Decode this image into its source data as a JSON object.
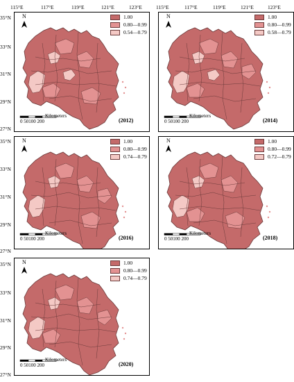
{
  "axes": {
    "longitudes": [
      "115°E",
      "117°E",
      "119°E",
      "121°E",
      "123°E",
      "115°E",
      "117°E",
      "119°E",
      "121°E",
      "123°E"
    ],
    "latitudes_top": [
      "35°N",
      "33°N",
      "31°N",
      "29°N",
      "27°N"
    ],
    "latitudes_mid": [
      "35°N",
      "33°N",
      "31°N",
      "29°N",
      "27°N"
    ],
    "latitudes_bot": [
      "35°N",
      "33°N",
      "31°N",
      "29°N",
      "27°N"
    ]
  },
  "colors": {
    "dark": "#c46a6a",
    "mid": "#e39292",
    "light": "#f4c9c5",
    "border": "#6b3a3a"
  },
  "panels": [
    {
      "year": "(2012)",
      "legend": [
        "1.00",
        "0.80—0.99",
        "0.54—0.79"
      ],
      "north": "N",
      "scale_text": "0  50100  200",
      "scale_unit": "Kilometers"
    },
    {
      "year": "(2014)",
      "legend": [
        "1.00",
        "0.80—0.99",
        "0.58—0.79"
      ],
      "north": "N",
      "scale_text": "0  50100  200",
      "scale_unit": "Kilometers"
    },
    {
      "year": "(2016)",
      "legend": [
        "1.00",
        "0.80—0.99",
        "0.74—0.79"
      ],
      "north": "N",
      "scale_text": "0  50100  200",
      "scale_unit": "Kilometers"
    },
    {
      "year": "(2018)",
      "legend": [
        "1.00",
        "0.80—0.99",
        "0.72—0.79"
      ],
      "north": "N",
      "scale_text": "0  50100  200",
      "scale_unit": "Kilometers"
    },
    {
      "year": "(2020)",
      "legend": [
        "1.00",
        "0.80—0.99",
        "0.74—0.79"
      ],
      "north": "N",
      "scale_text": "0  50100  200",
      "scale_unit": "Kilometers"
    }
  ]
}
